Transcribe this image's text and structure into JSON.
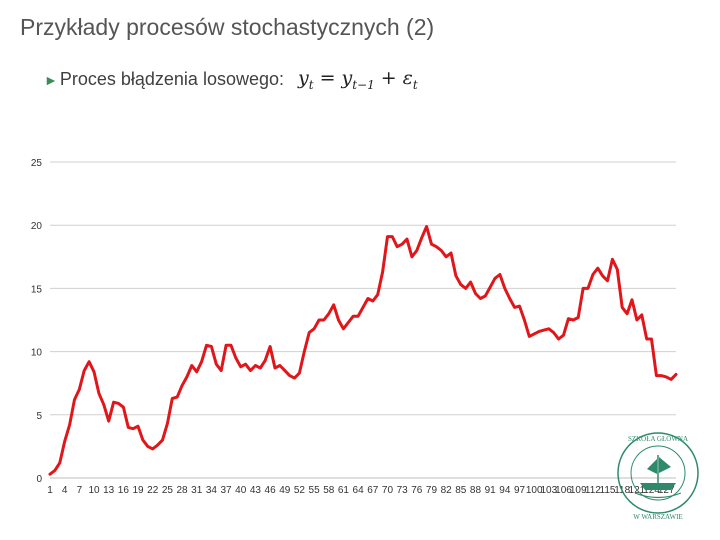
{
  "slide": {
    "title": "Przykłady procesów stochastycznych (2)",
    "bullet_text": "Proces błądzenia losowego:",
    "formula": {
      "lhs": "y",
      "lhs_sub": "t",
      "eq": "=",
      "rhs1": "y",
      "rhs1_sub": "t−1",
      "plus": "+",
      "rhs2": "ε",
      "rhs2_sub": "t"
    }
  },
  "logo": {
    "name": "SZKOŁA GŁÓWNA HANDLOWA W WARSZAWIE",
    "color": "#2e8a6a"
  },
  "colors": {
    "series": "#e0161b",
    "grid": "#d0d0d0",
    "accent": "#3c8c5a"
  },
  "chart_data": {
    "type": "line",
    "title": "",
    "xlabel": "",
    "ylabel": "",
    "ylim": [
      0,
      25
    ],
    "yticks": [
      0,
      5,
      10,
      15,
      20,
      25
    ],
    "grid": true,
    "legend": "none",
    "x_tick_labels": [
      "1",
      "4",
      "7",
      "10",
      "13",
      "16",
      "19",
      "22",
      "25",
      "28",
      "31",
      "34",
      "37",
      "40",
      "43",
      "46",
      "49",
      "52",
      "55",
      "58",
      "61",
      "64",
      "67",
      "70",
      "73",
      "76",
      "79",
      "82",
      "85",
      "88",
      "91",
      "94",
      "97",
      "100",
      "103",
      "106",
      "109",
      "112",
      "115",
      "118",
      "121",
      "124",
      "127"
    ],
    "series": [
      {
        "name": "",
        "x": [
          1,
          2,
          3,
          4,
          5,
          6,
          7,
          8,
          9,
          10,
          11,
          12,
          13,
          14,
          15,
          16,
          17,
          18,
          19,
          20,
          21,
          22,
          23,
          24,
          25,
          26,
          27,
          28,
          29,
          30,
          31,
          32,
          33,
          34,
          35,
          36,
          37,
          38,
          39,
          40,
          41,
          42,
          43,
          44,
          45,
          46,
          47,
          48,
          49,
          50,
          51,
          52,
          53,
          54,
          55,
          56,
          57,
          58,
          59,
          60,
          61,
          62,
          63,
          64,
          65,
          66,
          67,
          68,
          69,
          70,
          71,
          72,
          73,
          74,
          75,
          76,
          77,
          78,
          79,
          80,
          81,
          82,
          83,
          84,
          85,
          86,
          87,
          88,
          89,
          90,
          91,
          92,
          93,
          94,
          95,
          96,
          97,
          98,
          99,
          100,
          101,
          102,
          103,
          104,
          105,
          106,
          107,
          108,
          109,
          110,
          111,
          112,
          113,
          114,
          115,
          116,
          117,
          118,
          119,
          120,
          121,
          122,
          123,
          124,
          125,
          126,
          127,
          128,
          129
        ],
        "values": [
          0.3,
          0.6,
          1.2,
          2.9,
          4.2,
          6.2,
          7.0,
          8.5,
          9.2,
          8.4,
          6.7,
          5.8,
          4.5,
          6.0,
          5.9,
          5.6,
          4.0,
          3.9,
          4.1,
          3.0,
          2.5,
          2.3,
          2.6,
          3.0,
          4.3,
          6.3,
          6.4,
          7.3,
          8.0,
          8.9,
          8.4,
          9.2,
          10.5,
          10.4,
          9.0,
          8.5,
          10.5,
          10.5,
          9.5,
          8.8,
          9.0,
          8.5,
          8.9,
          8.7,
          9.3,
          10.4,
          8.7,
          8.9,
          8.5,
          8.1,
          7.9,
          8.3,
          10.0,
          11.5,
          11.8,
          12.5,
          12.5,
          13.0,
          13.7,
          12.5,
          11.8,
          12.3,
          12.8,
          12.8,
          13.5,
          14.2,
          14.0,
          14.5,
          16.3,
          19.1,
          19.1,
          18.3,
          18.5,
          18.9,
          17.5,
          18.0,
          19.0,
          19.9,
          18.5,
          18.3,
          18.0,
          17.5,
          17.8,
          16.0,
          15.3,
          15.0,
          15.5,
          14.6,
          14.2,
          14.4,
          15.1,
          15.8,
          16.1,
          15.0,
          14.2,
          13.5,
          13.6,
          12.5,
          11.2,
          11.4,
          11.6,
          11.7,
          11.8,
          11.5,
          11.0,
          11.3,
          12.6,
          12.5,
          12.7,
          15.0,
          15.0,
          16.1,
          16.6,
          16.0,
          15.6,
          17.3,
          16.5,
          13.5,
          13.0,
          14.1,
          12.5,
          12.9,
          11.0,
          11.0,
          8.1,
          8.1,
          8.0,
          7.8,
          8.2
        ]
      }
    ]
  }
}
